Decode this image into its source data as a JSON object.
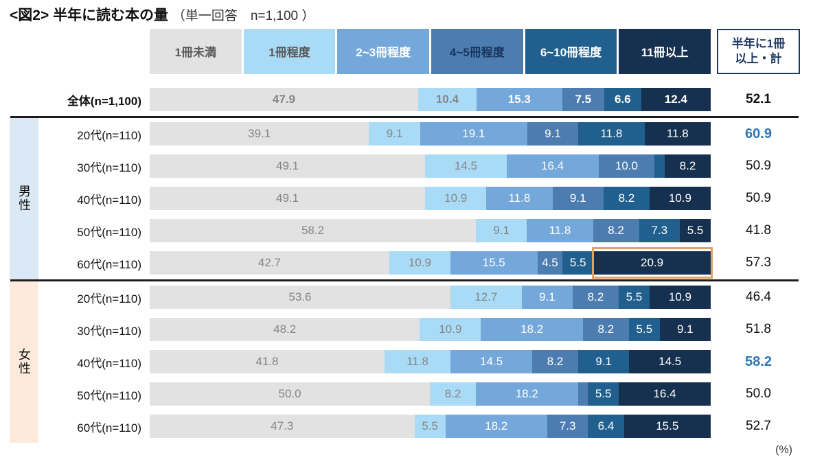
{
  "title": {
    "prefix": "<図2>",
    "main": "半年に読む本の量",
    "sub": "（単一回答　n=1,100 ）"
  },
  "legend": {
    "categories": [
      {
        "label": "1冊未満",
        "bg": "#e2e2e2",
        "text": "#595959"
      },
      {
        "label": "1冊程度",
        "bg": "#a9dbf7",
        "text": "#595959"
      },
      {
        "label": "2~3冊程度",
        "bg": "#74a7da",
        "text": "#ffffff"
      },
      {
        "label": "4~5冊程度",
        "bg": "#4d7db0",
        "text": "#17365d"
      },
      {
        "label": "6~10冊程度",
        "bg": "#21608e",
        "text": "#ffffff"
      },
      {
        "label": "11冊以上",
        "bg": "#16304f",
        "text": "#ffffff"
      }
    ],
    "total_box": {
      "line1": "半年に1冊",
      "line2": "以上・計"
    }
  },
  "colors": {
    "bar_label_light": "#858585",
    "bar_label_dark": "#ffffff",
    "accent_blue": "#2e75b6",
    "highlight_border": "#e4a262",
    "divider": "#1c1c1c"
  },
  "groups": [
    {
      "id": "male",
      "label": "男性",
      "bg": "#dbe8f6"
    },
    {
      "id": "female",
      "label": "女性",
      "bg": "#fdeadc"
    }
  ],
  "chart_data": {
    "type": "bar",
    "stacked": true,
    "orientation": "horizontal",
    "unit": "(%)",
    "xlim": [
      0,
      100
    ],
    "min_label_value": 3.0,
    "categories": [
      "1冊未満",
      "1冊程度",
      "2~3冊程度",
      "4~5冊程度",
      "6~10冊程度",
      "11冊以上"
    ],
    "total_column_label": "半年に1冊以上・計",
    "rows": [
      {
        "label": "全体(n=1,100)",
        "group": null,
        "emphasis": true,
        "values": [
          47.9,
          10.4,
          15.3,
          7.5,
          6.6,
          12.4
        ],
        "total": "52.1",
        "total_style": "bold"
      },
      {
        "label": "20代(n=110)",
        "group": "male",
        "emphasis": false,
        "values": [
          39.1,
          9.1,
          19.1,
          9.1,
          11.8,
          11.8
        ],
        "total": "60.9",
        "total_style": "accent"
      },
      {
        "label": "30代(n=110)",
        "group": "male",
        "emphasis": false,
        "values": [
          49.1,
          14.5,
          16.4,
          10.0,
          1.8,
          8.2
        ],
        "total": "50.9",
        "total_style": "normal"
      },
      {
        "label": "40代(n=110)",
        "group": "male",
        "emphasis": false,
        "values": [
          49.1,
          10.9,
          11.8,
          9.1,
          8.2,
          10.9
        ],
        "total": "50.9",
        "total_style": "normal"
      },
      {
        "label": "50代(n=110)",
        "group": "male",
        "emphasis": false,
        "values": [
          58.2,
          9.1,
          11.8,
          8.2,
          7.3,
          5.5
        ],
        "total": "41.8",
        "total_style": "normal"
      },
      {
        "label": "60代(n=110)",
        "group": "male",
        "emphasis": false,
        "values": [
          42.7,
          10.9,
          15.5,
          4.5,
          5.5,
          20.9
        ],
        "total": "57.3",
        "total_style": "normal",
        "highlight_segment": 5
      },
      {
        "label": "20代(n=110)",
        "group": "female",
        "emphasis": false,
        "values": [
          53.6,
          12.7,
          9.1,
          8.2,
          5.5,
          10.9
        ],
        "total": "46.4",
        "total_style": "normal"
      },
      {
        "label": "30代(n=110)",
        "group": "female",
        "emphasis": false,
        "values": [
          48.2,
          10.9,
          18.2,
          8.2,
          5.5,
          9.1
        ],
        "total": "51.8",
        "total_style": "normal"
      },
      {
        "label": "40代(n=110)",
        "group": "female",
        "emphasis": false,
        "values": [
          41.8,
          11.8,
          14.5,
          8.2,
          9.1,
          14.5
        ],
        "total": "58.2",
        "total_style": "accent"
      },
      {
        "label": "50代(n=110)",
        "group": "female",
        "emphasis": false,
        "values": [
          50.0,
          8.2,
          18.2,
          1.8,
          5.5,
          16.4
        ],
        "total": "50.0",
        "total_style": "normal"
      },
      {
        "label": "60代(n=110)",
        "group": "female",
        "emphasis": false,
        "values": [
          47.3,
          5.5,
          18.2,
          7.3,
          6.4,
          15.5
        ],
        "total": "52.7",
        "total_style": "normal"
      }
    ]
  }
}
